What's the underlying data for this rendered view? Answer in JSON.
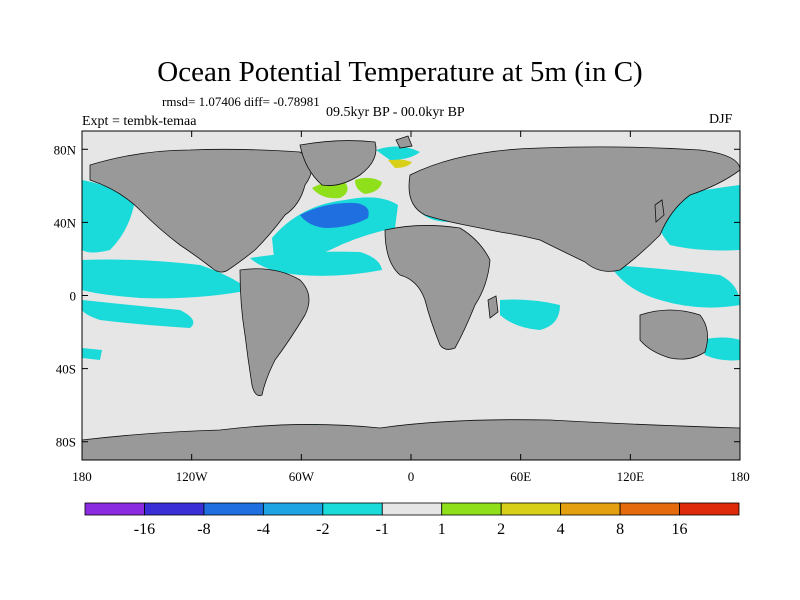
{
  "title": "Ocean Potential Temperature at 5m (in C)",
  "stats_line": "rmsd= 1.07406 diff= -0.78981",
  "period": "09.5kyr BP - 00.0kyr BP",
  "experiment": "Expt = tembk-temaa",
  "season": "DJF",
  "map": {
    "projection": "cylindrical-equidistant",
    "lon_range": [
      -180,
      180
    ],
    "lat_range": [
      -90,
      90
    ],
    "x_ticks": [
      {
        "lon": -180,
        "label": "180"
      },
      {
        "lon": -120,
        "label": "120W"
      },
      {
        "lon": -60,
        "label": "60W"
      },
      {
        "lon": 0,
        "label": "0"
      },
      {
        "lon": 60,
        "label": "60E"
      },
      {
        "lon": 120,
        "label": "120E"
      },
      {
        "lon": 180,
        "label": "180"
      }
    ],
    "y_ticks": [
      {
        "lat": 80,
        "label": "80N"
      },
      {
        "lat": 40,
        "label": "40N"
      },
      {
        "lat": 0,
        "label": "0"
      },
      {
        "lat": -40,
        "label": "40S"
      },
      {
        "lat": -80,
        "label": "80S"
      }
    ]
  },
  "colorbar": {
    "colors": [
      "#8a2be2",
      "#3a2fd6",
      "#1f6fe0",
      "#1ea3e3",
      "#1bdada",
      "#e6e6e6",
      "#8fe01a",
      "#d8d018",
      "#e4a010",
      "#e46a0c",
      "#de2a08"
    ],
    "labels": [
      "-16",
      "-8",
      "-4",
      "-2",
      "-1",
      "1",
      "2",
      "4",
      "8",
      "16"
    ]
  },
  "palette": {
    "land": "#999999",
    "no_change": "#e6e6e6",
    "cool_1_2": "#1bdada",
    "cool_2_4": "#1ea3e3",
    "cool_4_8": "#1f6fe0",
    "warm_1_2": "#8fe01a",
    "warm_2_4": "#d8d018"
  }
}
